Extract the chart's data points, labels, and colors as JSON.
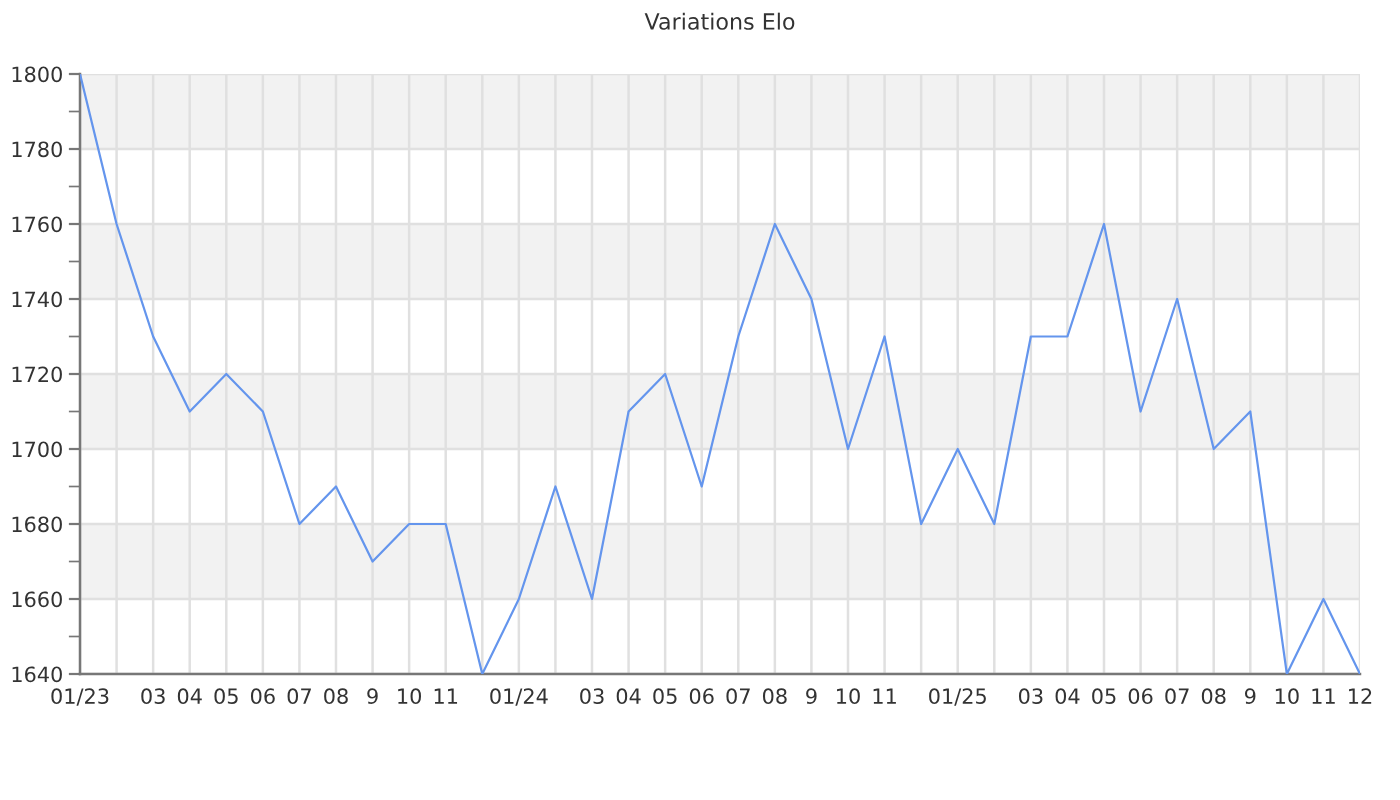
{
  "chart_data": {
    "type": "line",
    "title": "Variations Elo",
    "categories": [
      "01/23",
      null,
      "03",
      "04",
      "05",
      "06",
      "07",
      "08",
      "9",
      "10",
      "11",
      null,
      "01/24",
      null,
      "03",
      "04",
      "05",
      "06",
      "07",
      "08",
      "9",
      "10",
      "11",
      null,
      "01/25",
      null,
      "03",
      "04",
      "05",
      "06",
      "07",
      "08",
      "9",
      "10",
      "11",
      "12"
    ],
    "series": [
      {
        "color": "#6495ed",
        "values": [
          1800,
          1760,
          1730,
          1710,
          1720,
          1710,
          1680,
          1690,
          1670,
          1680,
          1680,
          1640,
          1660,
          1690,
          1660,
          1710,
          1720,
          1690,
          1730,
          1760,
          1740,
          1700,
          1730,
          1680,
          1700,
          1680,
          1730,
          1730,
          1760,
          1710,
          1740,
          1700,
          1710,
          1640,
          1660,
          1640
        ]
      }
    ],
    "ylim": [
      1640,
      1800
    ],
    "yticks": [
      1640,
      {
        "value": 1650,
        "label": null
      },
      1660,
      {
        "value": 1670,
        "label": null
      },
      1680,
      {
        "value": 1690,
        "label": null
      },
      1700,
      {
        "value": 1710,
        "label": null
      },
      1720,
      {
        "value": 1730,
        "label": null
      },
      1740,
      {
        "value": 1750,
        "label": null
      },
      1760,
      {
        "value": 1770,
        "label": null
      },
      1780,
      {
        "value": 1790,
        "label": null
      },
      1800
    ],
    "grid": true,
    "bands": [
      {
        "axis": "y",
        "from": 1660,
        "to": 1680,
        "color": "#f2f2f2"
      },
      {
        "axis": "y",
        "from": 1700,
        "to": 1720,
        "color": "#f2f2f2"
      },
      {
        "axis": "y",
        "from": 1740,
        "to": 1760,
        "color": "#f2f2f2"
      },
      {
        "axis": "y",
        "from": 1780,
        "to": 1800,
        "color": "#f2f2f2"
      }
    ]
  }
}
